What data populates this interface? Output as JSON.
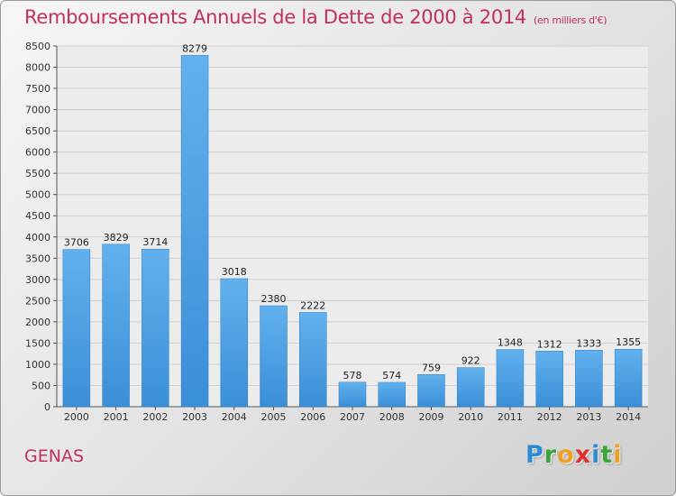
{
  "title": "Remboursements Annuels de la Dette de 2000 à 2014",
  "title_unit": "(en milliers d'€)",
  "commune": "GENAS",
  "logo": {
    "text": "Proxiti",
    "letters": [
      "P",
      "r",
      "o",
      "x",
      "i",
      "t",
      "i"
    ]
  },
  "colors": {
    "bar": "#3a8fd6",
    "bar_light": "#62b1ee",
    "title": "#c0305a"
  },
  "chart_data": {
    "type": "bar",
    "categories": [
      "2000",
      "2001",
      "2002",
      "2003",
      "2004",
      "2005",
      "2006",
      "2007",
      "2008",
      "2009",
      "2010",
      "2011",
      "2012",
      "2013",
      "2014"
    ],
    "values": [
      3706,
      3829,
      3714,
      8279,
      3018,
      2380,
      2222,
      578,
      574,
      759,
      922,
      1348,
      1312,
      1333,
      1355
    ],
    "ylim": [
      0,
      8500
    ],
    "yticks": [
      0,
      500,
      1000,
      1500,
      2000,
      2500,
      3000,
      3500,
      4000,
      4500,
      5000,
      5500,
      6000,
      6500,
      7000,
      7500,
      8000,
      8500
    ],
    "grid": true,
    "xlabel": "",
    "ylabel": ""
  }
}
